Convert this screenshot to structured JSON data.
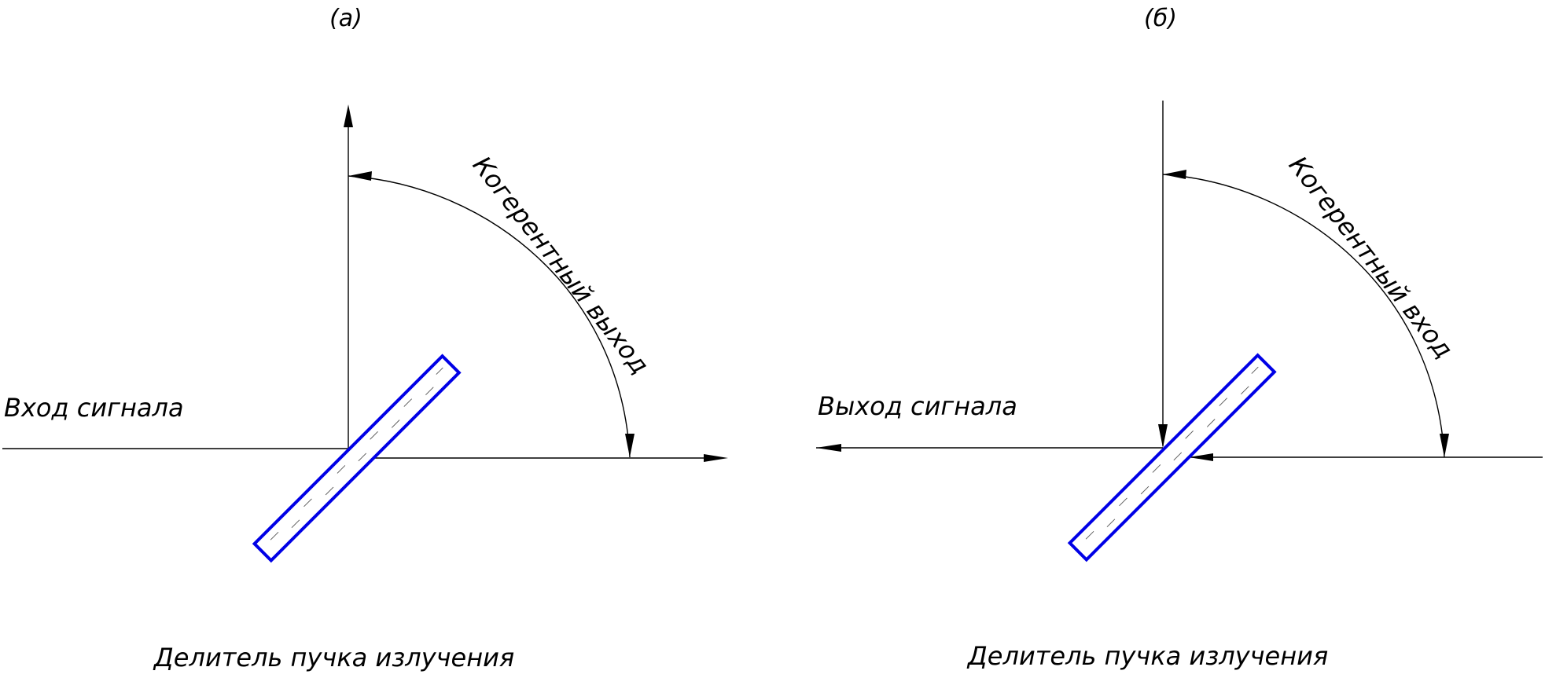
{
  "panels": [
    {
      "id": "a",
      "panel_label": "(a)",
      "signal_label": "Вход сигнала",
      "coherent_label": "Когерентный выход",
      "splitter_label": "Делитель пучка излучения"
    },
    {
      "id": "b",
      "panel_label": "(б)",
      "signal_label": "Выход сигнала",
      "coherent_label": "Когерентный вход",
      "splitter_label": "Делитель пучка излучения"
    }
  ],
  "colors": {
    "splitter_outline": "#0000e6",
    "lines": "#000000"
  }
}
